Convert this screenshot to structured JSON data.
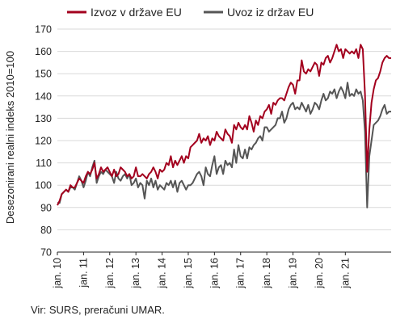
{
  "source_note": "Vir: SURS, preračuni UMAR.",
  "chart_data": {
    "type": "line",
    "title": "",
    "ylabel": "Desezonirani realni indeks 2010=100",
    "xlabel": "",
    "ylim": [
      70,
      170
    ],
    "yticks": [
      70,
      80,
      90,
      100,
      110,
      120,
      130,
      140,
      150,
      160,
      170
    ],
    "xticks": [
      "jan. 10",
      "jan. 11",
      "jan. 12",
      "jan. 13",
      "jan. 14",
      "jan. 15",
      "jan. 16",
      "jan. 17",
      "jan. 18",
      "jan. 19",
      "jan. 20",
      "jan. 21"
    ],
    "grid": "horizontal",
    "legend_position": "top",
    "series": [
      {
        "name": "Izvoz v države EU",
        "color": "#a3001e",
        "values": [
          91,
          93,
          96,
          97,
          98,
          97,
          100,
          99,
          99,
          101,
          103,
          102,
          101,
          104,
          106,
          105,
          107,
          110,
          103,
          105,
          108,
          106,
          107,
          108,
          106,
          104,
          107,
          104,
          105,
          108,
          107,
          106,
          104,
          105,
          103,
          104,
          108,
          104,
          104,
          105,
          104,
          103,
          105,
          106,
          108,
          106,
          103,
          107,
          106,
          107,
          110,
          109,
          113,
          108,
          111,
          109,
          111,
          113,
          110,
          113,
          112,
          117,
          118,
          119,
          120,
          123,
          119,
          121,
          120,
          122,
          118,
          121,
          120,
          124,
          122,
          121,
          120,
          125,
          123,
          122,
          119,
          127,
          125,
          128,
          126,
          125,
          127,
          125,
          131,
          128,
          124,
          129,
          127,
          131,
          130,
          133,
          134,
          136,
          132,
          137,
          136,
          138,
          139,
          139,
          138,
          141,
          144,
          146,
          145,
          141,
          147,
          147,
          156,
          151,
          150,
          152,
          151,
          153,
          155,
          154,
          149,
          155,
          154,
          157,
          158,
          155,
          157,
          160,
          163,
          160,
          161,
          157,
          161,
          160,
          159,
          160,
          159,
          161,
          157,
          163,
          161,
          141,
          106,
          125,
          137,
          143,
          147,
          148,
          151,
          155,
          157,
          158,
          157,
          157
        ]
      },
      {
        "name": "Uvoz iz držav EU",
        "color": "#555555",
        "values": [
          92,
          92,
          96,
          97,
          98,
          97,
          99,
          99,
          98,
          101,
          104,
          102,
          99,
          102,
          106,
          104,
          108,
          111,
          101,
          104,
          106,
          105,
          107,
          106,
          105,
          104,
          101,
          106,
          103,
          102,
          104,
          105,
          103,
          105,
          100,
          101,
          103,
          99,
          101,
          100,
          94,
          102,
          100,
          103,
          99,
          102,
          98,
          100,
          99,
          98,
          101,
          100,
          102,
          99,
          102,
          97,
          101,
          102,
          100,
          98,
          100,
          100,
          101,
          103,
          105,
          106,
          104,
          100,
          108,
          105,
          104,
          109,
          113,
          105,
          108,
          109,
          105,
          111,
          109,
          110,
          108,
          116,
          110,
          118,
          113,
          112,
          116,
          112,
          117,
          116,
          118,
          119,
          121,
          122,
          120,
          126,
          126,
          124,
          125,
          126,
          127,
          130,
          130,
          133,
          128,
          130,
          134,
          136,
          137,
          134,
          135,
          134,
          137,
          135,
          133,
          136,
          132,
          134,
          137,
          136,
          134,
          138,
          141,
          138,
          139,
          142,
          141,
          143,
          139,
          142,
          144,
          142,
          139,
          146,
          140,
          141,
          140,
          143,
          141,
          142,
          138,
          124,
          90,
          113,
          120,
          127,
          128,
          129,
          131,
          134,
          136,
          132,
          133,
          133
        ]
      }
    ]
  }
}
